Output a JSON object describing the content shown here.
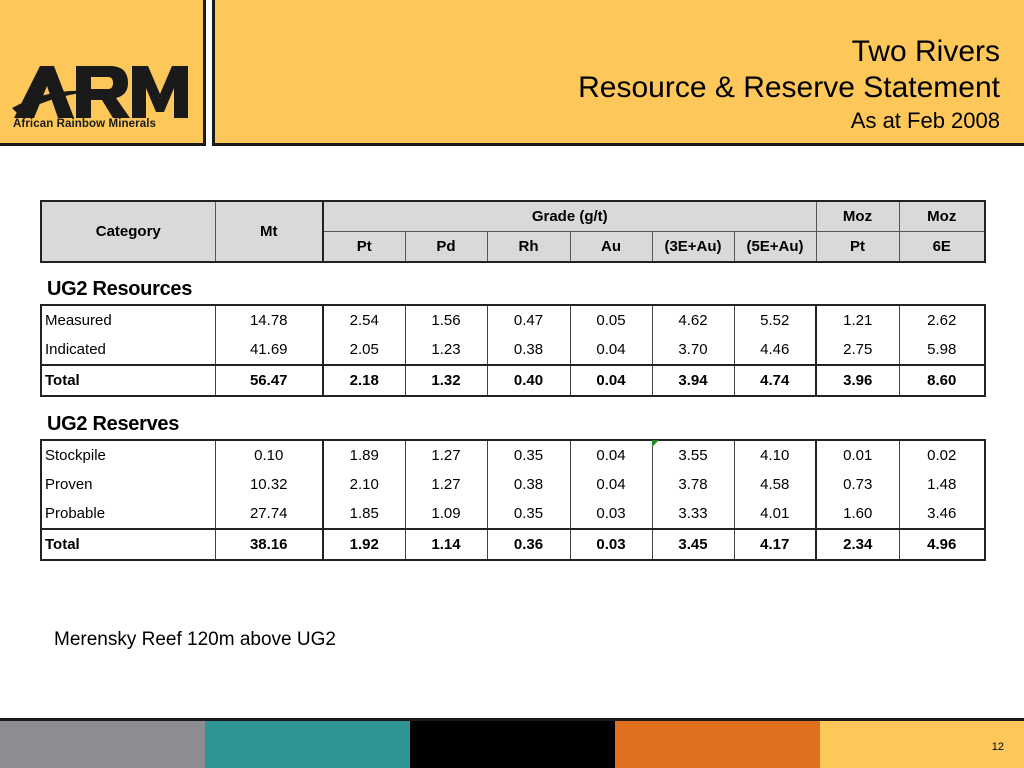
{
  "header": {
    "title_line1": "Two Rivers",
    "title_line2": "Resource & Reserve Statement",
    "title_line3": "As at Feb 2008",
    "logo_wordmark": "ARM",
    "logo_subtitle": "African Rainbow Minerals"
  },
  "table_header": {
    "category": "Category",
    "mt": "Mt",
    "grade_group": "Grade (g/t)",
    "moz1_top": "Moz",
    "moz2_top": "Moz",
    "pt": "Pt",
    "pd": "Pd",
    "rh": "Rh",
    "au": "Au",
    "e3": "(3E+Au)",
    "e5": "(5E+Au)",
    "moz1_bottom": "Pt",
    "moz2_bottom": "6E"
  },
  "resources": {
    "title": "UG2 Resources",
    "rows": [
      {
        "cat": "Measured",
        "mt": "14.78",
        "pt": "2.54",
        "pd": "1.56",
        "rh": "0.47",
        "au": "0.05",
        "e3": "4.62",
        "e5": "5.52",
        "mozpt": "1.21",
        "moz6e": "2.62"
      },
      {
        "cat": "Indicated",
        "mt": "41.69",
        "pt": "2.05",
        "pd": "1.23",
        "rh": "0.38",
        "au": "0.04",
        "e3": "3.70",
        "e5": "4.46",
        "mozpt": "2.75",
        "moz6e": "5.98"
      },
      {
        "cat": "Total",
        "mt": "56.47",
        "pt": "2.18",
        "pd": "1.32",
        "rh": "0.40",
        "au": "0.04",
        "e3": "3.94",
        "e5": "4.74",
        "mozpt": "3.96",
        "moz6e": "8.60"
      }
    ]
  },
  "reserves": {
    "title": "UG2 Reserves",
    "rows": [
      {
        "cat": "Stockpile",
        "mt": "0.10",
        "pt": "1.89",
        "pd": "1.27",
        "rh": "0.35",
        "au": "0.04",
        "e3": "3.55",
        "e5": "4.10",
        "mozpt": "0.01",
        "moz6e": "0.02"
      },
      {
        "cat": "Proven",
        "mt": "10.32",
        "pt": "2.10",
        "pd": "1.27",
        "rh": "0.38",
        "au": "0.04",
        "e3": "3.78",
        "e5": "4.58",
        "mozpt": "0.73",
        "moz6e": "1.48"
      },
      {
        "cat": "Probable",
        "mt": "27.74",
        "pt": "1.85",
        "pd": "1.09",
        "rh": "0.35",
        "au": "0.03",
        "e3": "3.33",
        "e5": "4.01",
        "mozpt": "1.60",
        "moz6e": "3.46"
      },
      {
        "cat": "Total",
        "mt": "38.16",
        "pt": "1.92",
        "pd": "1.14",
        "rh": "0.36",
        "au": "0.03",
        "e3": "3.45",
        "e5": "4.17",
        "mozpt": "2.34",
        "moz6e": "4.96"
      }
    ]
  },
  "note": "Merensky Reef 120m above UG2",
  "footer": {
    "page_number": "12",
    "colors": [
      "#8c8d90",
      "#2e9595",
      "#000000",
      "#de6f1c",
      "#fdc75a"
    ]
  },
  "colors": {
    "header_bg": "#fdc75a",
    "table_header_bg": "#d9d9d9"
  }
}
